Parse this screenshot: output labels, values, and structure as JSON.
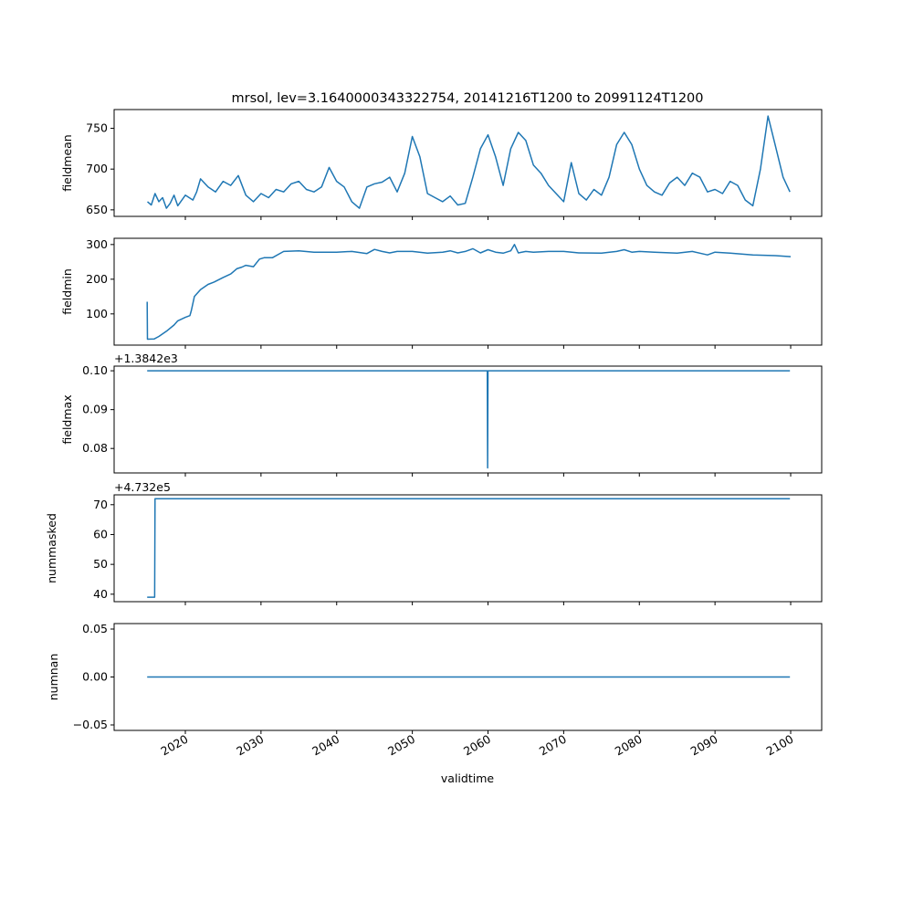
{
  "chart_data": {
    "type": "line",
    "title": "mrsol, lev=3.1640000343322754, 20141216T1200 to 20991124T1200",
    "xlabel": "validtime",
    "xlim": [
      2010.59,
      2104.1
    ],
    "xticks": [
      2020,
      2030,
      2040,
      2050,
      2060,
      2070,
      2080,
      2090,
      2100
    ],
    "color": "#1f77b4",
    "panels": [
      {
        "ylabel": "fieldmean",
        "offset": "",
        "ylim": [
          642,
          773
        ],
        "yticks": [
          650,
          700,
          750
        ],
        "yticklabels": [
          "650",
          "700",
          "750"
        ],
        "x": [
          2015,
          2015.5,
          2016,
          2016.5,
          2017,
          2017.5,
          2018,
          2018.5,
          2019,
          2020,
          2021,
          2021.5,
          2022,
          2023,
          2024,
          2025,
          2026,
          2027,
          2028,
          2029,
          2030,
          2031,
          2032,
          2033,
          2034,
          2035,
          2036,
          2037,
          2038,
          2039,
          2040,
          2041,
          2042,
          2043,
          2044,
          2045,
          2046,
          2047,
          2048,
          2049,
          2050,
          2051,
          2052,
          2053,
          2054,
          2055,
          2056,
          2057,
          2058,
          2059,
          2060,
          2061,
          2062,
          2063,
          2064,
          2065,
          2066,
          2067,
          2068,
          2069,
          2070,
          2071,
          2072,
          2073,
          2074,
          2075,
          2076,
          2077,
          2078,
          2079,
          2080,
          2081,
          2082,
          2083,
          2084,
          2085,
          2086,
          2087,
          2088,
          2089,
          2090,
          2091,
          2092,
          2093,
          2094,
          2095,
          2096,
          2097,
          2098,
          2099,
          2099.9
        ],
        "y": [
          660,
          656,
          670,
          660,
          665,
          652,
          658,
          668,
          655,
          668,
          662,
          672,
          688,
          678,
          672,
          685,
          680,
          692,
          668,
          660,
          670,
          665,
          675,
          672,
          682,
          685,
          675,
          672,
          678,
          702,
          685,
          678,
          660,
          652,
          678,
          682,
          684,
          690,
          672,
          695,
          740,
          715,
          670,
          665,
          660,
          667,
          656,
          658,
          690,
          725,
          742,
          715,
          680,
          725,
          745,
          735,
          705,
          695,
          680,
          670,
          660,
          708,
          670,
          662,
          675,
          668,
          690,
          730,
          745,
          730,
          700,
          680,
          672,
          668,
          683,
          690,
          680,
          695,
          690,
          672,
          675,
          670,
          685,
          680,
          662,
          655,
          700,
          765,
          728,
          690,
          672
        ]
      },
      {
        "ylabel": "fieldmin",
        "offset": "",
        "ylim": [
          10,
          318
        ],
        "yticks": [
          100,
          200,
          300
        ],
        "yticklabels": [
          "100",
          "200",
          "300"
        ],
        "x": [
          2014.96,
          2015.0,
          2015.9,
          2016.5,
          2017.5,
          2018.5,
          2019,
          2020,
          2020.6,
          2020.8,
          2021.2,
          2022,
          2023,
          2023.8,
          2025,
          2026,
          2026.8,
          2027.5,
          2028,
          2029,
          2029.8,
          2030.4,
          2031.5,
          2033,
          2035,
          2037,
          2040,
          2042,
          2044,
          2045,
          2046,
          2047,
          2048,
          2050,
          2052,
          2054,
          2055,
          2056,
          2057,
          2058,
          2059,
          2060,
          2061,
          2062,
          2063,
          2063.5,
          2064,
          2065,
          2066,
          2068,
          2070,
          2072,
          2075,
          2077,
          2078,
          2079,
          2080,
          2082,
          2085,
          2087,
          2089,
          2090,
          2092,
          2095,
          2098,
          2100
        ],
        "y": [
          135,
          27,
          28,
          35,
          50,
          68,
          80,
          90,
          95,
          110,
          150,
          170,
          185,
          192,
          205,
          215,
          230,
          235,
          240,
          236,
          258,
          262,
          262,
          280,
          282,
          278,
          278,
          280,
          274,
          286,
          280,
          276,
          280,
          280,
          275,
          278,
          282,
          276,
          280,
          288,
          276,
          285,
          278,
          275,
          282,
          300,
          276,
          280,
          278,
          280,
          280,
          276,
          275,
          280,
          285,
          278,
          280,
          278,
          275,
          280,
          270,
          278,
          275,
          270,
          268,
          265
        ]
      },
      {
        "ylabel": "fieldmax",
        "offset": "+1.3842e3",
        "ylim": [
          0.0737,
          0.1012
        ],
        "yticks": [
          0.08,
          0.09,
          0.1
        ],
        "yticklabels": [
          "0.08",
          "0.09",
          "0.10"
        ],
        "x": [
          2014.96,
          2059.9,
          2059.95,
          2060.0,
          2099.9
        ],
        "y": [
          0.1,
          0.1,
          0.075,
          0.1,
          0.1
        ]
      },
      {
        "ylabel": "nummasked",
        "offset": "+4.732e5",
        "ylim": [
          37.5,
          73.3
        ],
        "yticks": [
          40,
          50,
          60,
          70
        ],
        "yticklabels": [
          "40",
          "50",
          "60",
          "70"
        ],
        "x": [
          2014.96,
          2015.95,
          2016.0,
          2099.9
        ],
        "y": [
          39,
          39,
          72,
          72
        ]
      },
      {
        "ylabel": "numnan",
        "offset": "",
        "ylim": [
          -0.0557,
          0.0557
        ],
        "yticks": [
          -0.05,
          0.0,
          0.05
        ],
        "yticklabels": [
          "−0.05",
          "0.00",
          "0.05"
        ],
        "x": [
          2014.96,
          2099.9
        ],
        "y": [
          0,
          0
        ]
      }
    ]
  }
}
